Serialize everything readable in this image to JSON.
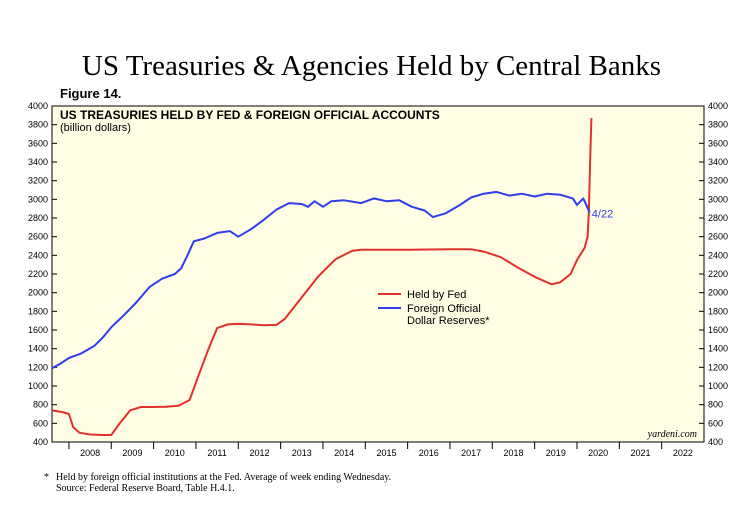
{
  "page": {
    "title": "US Treasuries & Agencies Held by Central Banks",
    "figure_label": "Figure 14.",
    "footnote_mark": "*",
    "footnote_line1": "Held by foreign official institutions at the Fed. Average of week ending Wednesday.",
    "footnote_line2": "Source: Federal Reserve Board, Table H.4.1."
  },
  "chart_data": {
    "type": "line",
    "title": "US TREASURIES HELD BY FED & FOREIGN OFFICIAL ACCOUNTS",
    "subtitle": "(billion dollars)",
    "xlabel": "",
    "ylabel": "",
    "ylim": [
      400,
      4000
    ],
    "xlim": [
      2007.6,
      2023.0
    ],
    "yticks": [
      400,
      600,
      800,
      1000,
      1200,
      1400,
      1600,
      1800,
      2000,
      2200,
      2400,
      2600,
      2800,
      3000,
      3200,
      3400,
      3600,
      3800,
      4000
    ],
    "xtick_labels": [
      "2008",
      "2009",
      "2010",
      "2011",
      "2012",
      "2013",
      "2014",
      "2015",
      "2016",
      "2017",
      "2018",
      "2019",
      "2020",
      "2021",
      "2022"
    ],
    "grid": false,
    "legend_position": "center",
    "watermark": "yardeni.com",
    "annotation": {
      "text": "4/22",
      "x": 2020.35,
      "y": 2850,
      "color": "#2f3dea"
    },
    "series": [
      {
        "name": "Held by Fed",
        "color": "#e0312b",
        "points": [
          [
            2007.6,
            740
          ],
          [
            2007.85,
            720
          ],
          [
            2008.0,
            700
          ],
          [
            2008.1,
            560
          ],
          [
            2008.25,
            500
          ],
          [
            2008.5,
            480
          ],
          [
            2008.8,
            475
          ],
          [
            2009.0,
            475
          ],
          [
            2009.2,
            600
          ],
          [
            2009.45,
            740
          ],
          [
            2009.7,
            775
          ],
          [
            2010.0,
            775
          ],
          [
            2010.3,
            777
          ],
          [
            2010.6,
            790
          ],
          [
            2010.85,
            850
          ],
          [
            2011.05,
            1100
          ],
          [
            2011.3,
            1400
          ],
          [
            2011.5,
            1620
          ],
          [
            2011.75,
            1660
          ],
          [
            2012.0,
            1665
          ],
          [
            2012.3,
            1660
          ],
          [
            2012.6,
            1650
          ],
          [
            2012.9,
            1655
          ],
          [
            2013.1,
            1720
          ],
          [
            2013.5,
            1950
          ],
          [
            2013.9,
            2180
          ],
          [
            2014.3,
            2360
          ],
          [
            2014.7,
            2450
          ],
          [
            2014.9,
            2460
          ],
          [
            2015.5,
            2460
          ],
          [
            2016.0,
            2460
          ],
          [
            2016.5,
            2462
          ],
          [
            2017.0,
            2465
          ],
          [
            2017.5,
            2465
          ],
          [
            2017.8,
            2440
          ],
          [
            2018.2,
            2380
          ],
          [
            2018.6,
            2270
          ],
          [
            2019.0,
            2170
          ],
          [
            2019.4,
            2090
          ],
          [
            2019.6,
            2110
          ],
          [
            2019.85,
            2200
          ],
          [
            2020.0,
            2350
          ],
          [
            2020.18,
            2480
          ],
          [
            2020.25,
            2600
          ],
          [
            2020.28,
            2850
          ],
          [
            2020.31,
            3400
          ],
          [
            2020.34,
            3870
          ]
        ]
      },
      {
        "name": "Foreign Official Dollar Reserves*",
        "color": "#2f3dea",
        "points": [
          [
            2007.6,
            1190
          ],
          [
            2007.8,
            1240
          ],
          [
            2008.0,
            1300
          ],
          [
            2008.3,
            1350
          ],
          [
            2008.6,
            1430
          ],
          [
            2008.8,
            1520
          ],
          [
            2009.0,
            1630
          ],
          [
            2009.3,
            1760
          ],
          [
            2009.6,
            1900
          ],
          [
            2009.9,
            2060
          ],
          [
            2010.2,
            2150
          ],
          [
            2010.5,
            2200
          ],
          [
            2010.65,
            2260
          ],
          [
            2010.8,
            2400
          ],
          [
            2010.95,
            2550
          ],
          [
            2011.2,
            2580
          ],
          [
            2011.5,
            2640
          ],
          [
            2011.8,
            2660
          ],
          [
            2012.0,
            2600
          ],
          [
            2012.3,
            2680
          ],
          [
            2012.6,
            2780
          ],
          [
            2012.9,
            2890
          ],
          [
            2013.2,
            2960
          ],
          [
            2013.5,
            2950
          ],
          [
            2013.65,
            2920
          ],
          [
            2013.8,
            2980
          ],
          [
            2014.0,
            2920
          ],
          [
            2014.2,
            2980
          ],
          [
            2014.5,
            2990
          ],
          [
            2014.9,
            2960
          ],
          [
            2015.2,
            3010
          ],
          [
            2015.5,
            2980
          ],
          [
            2015.8,
            2990
          ],
          [
            2016.1,
            2920
          ],
          [
            2016.4,
            2880
          ],
          [
            2016.6,
            2810
          ],
          [
            2016.9,
            2850
          ],
          [
            2017.2,
            2930
          ],
          [
            2017.5,
            3020
          ],
          [
            2017.8,
            3060
          ],
          [
            2018.1,
            3080
          ],
          [
            2018.4,
            3040
          ],
          [
            2018.7,
            3060
          ],
          [
            2019.0,
            3030
          ],
          [
            2019.3,
            3060
          ],
          [
            2019.6,
            3050
          ],
          [
            2019.9,
            3010
          ],
          [
            2020.0,
            2940
          ],
          [
            2020.15,
            3010
          ],
          [
            2020.3,
            2860
          ]
        ]
      }
    ]
  }
}
